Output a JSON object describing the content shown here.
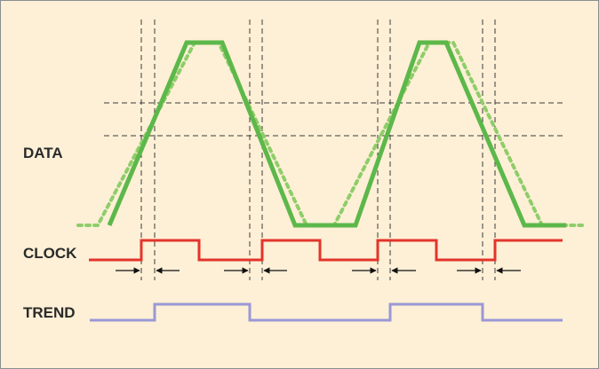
{
  "labels": {
    "data": "DATA",
    "clock": "CLOCK",
    "trend": "TREND"
  },
  "colors": {
    "background": "#fdf0d6",
    "data": "#5cb84a",
    "data_dotted": "#8fcd6a",
    "clock": "#e3342b",
    "trend": "#9a98d6",
    "guide": "#3a3a3a",
    "arrow": "#111111",
    "label": "#2a2a2a"
  }
}
